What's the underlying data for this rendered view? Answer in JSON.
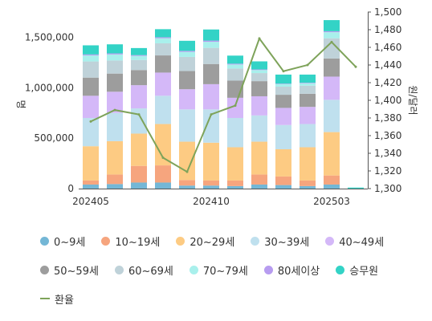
{
  "chart_data": {
    "type": "bar",
    "stacked": true,
    "categories": [
      "202405",
      "202406",
      "202407",
      "202408",
      "202409",
      "202410",
      "202411",
      "202412",
      "202501",
      "202502",
      "202503",
      "202504"
    ],
    "x_tick_labels": [
      "202405",
      "",
      "",
      "",
      "",
      "202410",
      "",
      "",
      "",
      "",
      "202503",
      ""
    ],
    "y_left": {
      "label": "명",
      "ticks": [
        "0",
        "500,000",
        "1,000,000",
        "1,500,000"
      ],
      "ylim": [
        0,
        1750000
      ]
    },
    "y_right": {
      "label": "원/달러",
      "ticks": [
        "1,300",
        "1,320",
        "1,340",
        "1,360",
        "1,380",
        "1,400",
        "1,420",
        "1,440",
        "1,460",
        "1,480",
        "1,500"
      ],
      "ylim": [
        1300,
        1500
      ]
    },
    "series": [
      {
        "name": "0~9세",
        "color": "#74b7d6",
        "values": [
          40000,
          45000,
          60000,
          60000,
          30000,
          30000,
          25000,
          40000,
          35000,
          25000,
          40000,
          0
        ]
      },
      {
        "name": "10~19세",
        "color": "#f6a57e",
        "values": [
          40000,
          95000,
          165000,
          170000,
          55000,
          50000,
          55000,
          100000,
          85000,
          55000,
          90000,
          0
        ]
      },
      {
        "name": "20~29세",
        "color": "#fdcb83",
        "values": [
          340000,
          330000,
          320000,
          410000,
          380000,
          375000,
          330000,
          325000,
          270000,
          330000,
          430000,
          0
        ]
      },
      {
        "name": "30~39세",
        "color": "#bfe0ee",
        "values": [
          280000,
          280000,
          250000,
          280000,
          320000,
          330000,
          290000,
          260000,
          240000,
          230000,
          320000,
          0
        ]
      },
      {
        "name": "40~49세",
        "color": "#d4b8f8",
        "values": [
          220000,
          210000,
          230000,
          230000,
          200000,
          250000,
          200000,
          190000,
          170000,
          170000,
          230000,
          0
        ]
      },
      {
        "name": "50~59세",
        "color": "#9d9d9d",
        "values": [
          180000,
          180000,
          150000,
          170000,
          180000,
          200000,
          170000,
          150000,
          130000,
          130000,
          180000,
          0
        ]
      },
      {
        "name": "60~69세",
        "color": "#bfd2d9",
        "values": [
          160000,
          130000,
          100000,
          120000,
          140000,
          160000,
          120000,
          80000,
          80000,
          80000,
          200000,
          0
        ]
      },
      {
        "name": "70~79세",
        "color": "#a9f0ec",
        "values": [
          60000,
          60000,
          40000,
          50000,
          50000,
          60000,
          40000,
          30000,
          25000,
          25000,
          60000,
          0
        ]
      },
      {
        "name": "80세이상",
        "color": "#b79cf0",
        "values": [
          10000,
          10000,
          8000,
          10000,
          10000,
          12000,
          8000,
          6000,
          5000,
          5000,
          10000,
          0
        ]
      },
      {
        "name": "승무원",
        "color": "#33d3c6",
        "values": [
          90000,
          90000,
          70000,
          80000,
          100000,
          110000,
          80000,
          80000,
          90000,
          80000,
          110000,
          10000
        ]
      }
    ],
    "line": {
      "name": "환율",
      "color": "#7ea35a",
      "axis": "right",
      "values": [
        1376,
        1389,
        1384,
        1335,
        1319,
        1384,
        1394,
        1470,
        1433,
        1440,
        1466,
        1438
      ]
    },
    "grid": false,
    "legend_position": "bottom"
  },
  "legend_rows": [
    [
      "0~9세",
      "10~19세",
      "20~29세",
      "30~39세",
      "40~49세"
    ],
    [
      "50~59세",
      "60~69세",
      "70~79세",
      "80세이상",
      "승무원"
    ],
    [
      "환율"
    ]
  ]
}
